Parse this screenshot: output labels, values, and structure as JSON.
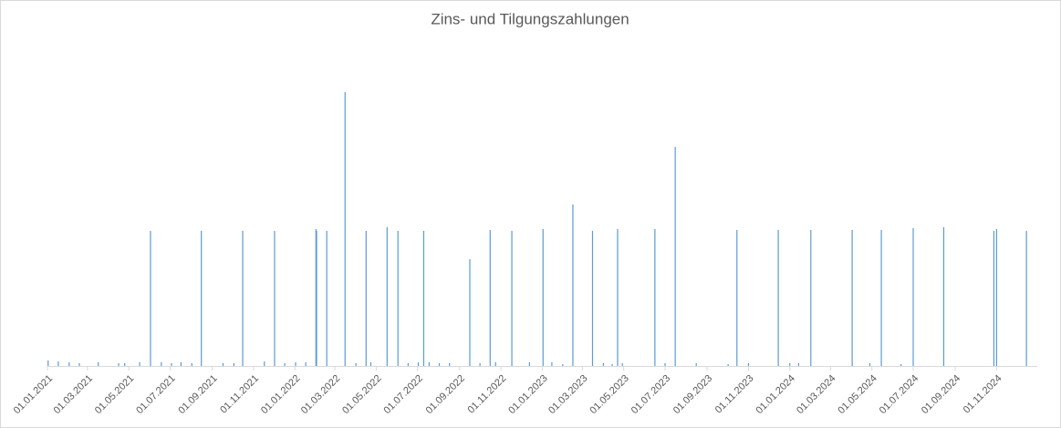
{
  "chart_data": {
    "type": "spike",
    "title": "Zins- und Tilgungszahlungen",
    "color": "#5b9bd5",
    "x": [
      "02.01.2021",
      "17.01.2021",
      "02.02.2021",
      "17.02.2021",
      "17.03.2021",
      "16.04.2021",
      "25.04.2021",
      "17.05.2021",
      "02.06.2021",
      "18.06.2021",
      "03.07.2021",
      "17.07.2021",
      "02.08.2021",
      "16.08.2021",
      "17.09.2021",
      "03.10.2021",
      "16.10.2021",
      "17.11.2021",
      "02.12.2021",
      "17.12.2021",
      "02.01.2022",
      "17.01.2022",
      "01.02.2022",
      "02.02.2022",
      "17.02.2022",
      "16.03.2022",
      "01.04.2022",
      "16.04.2022",
      "23.04.2022",
      "17.05.2022",
      "02.06.2022",
      "17.06.2022",
      "02.07.2022",
      "10.07.2022",
      "18.07.2022",
      "02.08.2022",
      "17.08.2022",
      "16.09.2022",
      "01.10.2022",
      "16.10.2022",
      "24.10.2022",
      "17.11.2022",
      "13.12.2022",
      "02.01.2023",
      "15.01.2023",
      "31.01.2023",
      "15.02.2023",
      "16.03.2023",
      "01.04.2023",
      "14.04.2023",
      "22.04.2023",
      "29.04.2023",
      "16.06.2023",
      "01.07.2023",
      "16.07.2023",
      "16.08.2023",
      "02.10.2023",
      "15.10.2023",
      "01.11.2023",
      "15.12.2023",
      "01.01.2024",
      "14.01.2024",
      "01.02.2024",
      "02.04.2024",
      "28.04.2024",
      "15.05.2024",
      "13.06.2024",
      "01.07.2024",
      "15.08.2024",
      "28.10.2024",
      "01.11.2024",
      "15.12.2024"
    ],
    "values": [
      6,
      5,
      4,
      3,
      4,
      3,
      3,
      4,
      148,
      4,
      3,
      4,
      3,
      148,
      3,
      3,
      148,
      5,
      148,
      3,
      4,
      4,
      150,
      148,
      148,
      300,
      3,
      148,
      4,
      152,
      148,
      3,
      4,
      148,
      4,
      3,
      3,
      117,
      3,
      149,
      4,
      148,
      4,
      150,
      4,
      2,
      177,
      148,
      3,
      2,
      150,
      3,
      150,
      3,
      240,
      3,
      2,
      149,
      3,
      149,
      3,
      3,
      149,
      149,
      3,
      149,
      2,
      151,
      152,
      148,
      150,
      148
    ],
    "xlim": [
      "01.01.2021",
      "31.12.2024"
    ],
    "xticks": [
      "01.01.2021",
      "01.03.2021",
      "01.05.2021",
      "01.07.2021",
      "01.09.2021",
      "01.11.2021",
      "01.01.2022",
      "01.03.2022",
      "01.05.2022",
      "01.07.2022",
      "01.09.2022",
      "01.11.2022",
      "01.01.2023",
      "01.03.2023",
      "01.05.2023",
      "01.07.2023",
      "01.09.2023",
      "01.11.2023",
      "01.01.2024",
      "01.03.2024",
      "01.05.2024",
      "01.07.2024",
      "01.09.2024",
      "01.11.2024"
    ],
    "ylim": [
      0,
      310
    ]
  }
}
